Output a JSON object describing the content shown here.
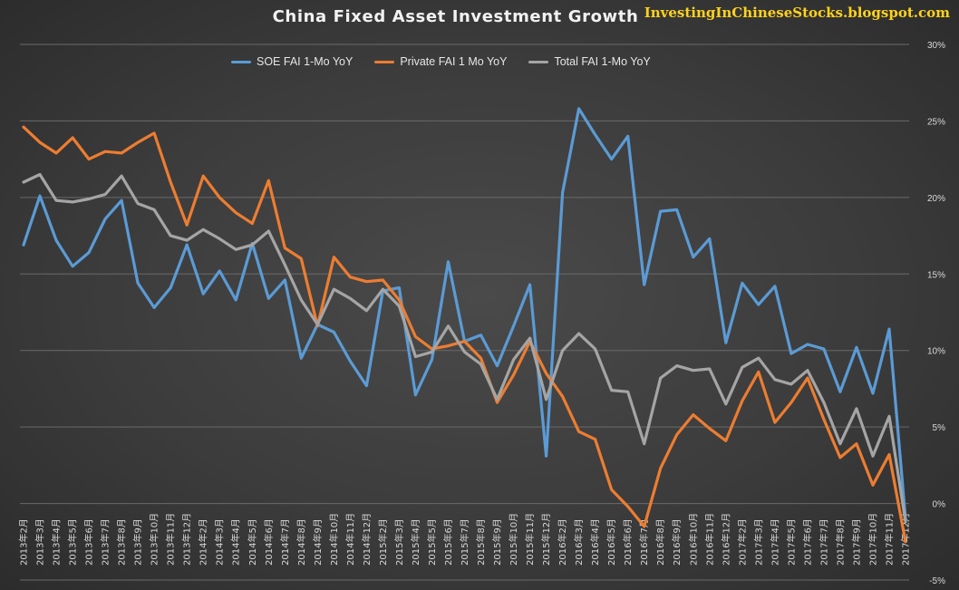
{
  "watermark": "InvestingInChineseStocks.blogspot.com",
  "chart_data": {
    "type": "line",
    "title": "China Fixed Asset Investment Growth",
    "xlabel": "",
    "ylabel": "",
    "ylim": [
      -5,
      30
    ],
    "yticks": [
      -5,
      0,
      5,
      10,
      15,
      20,
      25,
      30
    ],
    "ytick_labels": [
      "-5%",
      "0%",
      "5%",
      "10%",
      "15%",
      "20%",
      "25%",
      "30%"
    ],
    "grid": true,
    "legend_position": "top",
    "categories": [
      "2013年2月",
      "2013年3月",
      "2013年4月",
      "2013年5月",
      "2013年6月",
      "2013年7月",
      "2013年8月",
      "2013年9月",
      "2013年10月",
      "2013年11月",
      "2013年12月",
      "2014年2月",
      "2014年3月",
      "2014年4月",
      "2014年5月",
      "2014年6月",
      "2014年7月",
      "2014年8月",
      "2014年9月",
      "2014年10月",
      "2014年11月",
      "2014年12月",
      "2015年2月",
      "2015年3月",
      "2015年4月",
      "2015年5月",
      "2015年6月",
      "2015年7月",
      "2015年8月",
      "2015年9月",
      "2015年10月",
      "2015年11月",
      "2015年12月",
      "2016年2月",
      "2016年3月",
      "2016年4月",
      "2016年5月",
      "2016年6月",
      "2016年7月",
      "2016年8月",
      "2016年9月",
      "2016年10月",
      "2016年11月",
      "2016年12月",
      "2017年2月",
      "2017年3月",
      "2017年4月",
      "2017年5月",
      "2017年6月",
      "2017年7月",
      "2017年8月",
      "2017年9月",
      "2017年10月",
      "2017年11月",
      "2017年12月"
    ],
    "series": [
      {
        "name": "SOE FAI 1-Mo YoY",
        "color": "#5b9bd5",
        "values": [
          16.9,
          20.1,
          17.2,
          15.5,
          16.4,
          18.6,
          19.8,
          14.4,
          12.8,
          14.1,
          16.9,
          13.7,
          15.2,
          13.3,
          17.0,
          13.4,
          14.6,
          9.5,
          11.7,
          11.2,
          9.3,
          7.7,
          13.9,
          14.1,
          7.1,
          9.4,
          15.8,
          10.6,
          11.0,
          9.0,
          11.6,
          14.3,
          3.1,
          20.3,
          25.8,
          24.1,
          22.5,
          24.0,
          14.3,
          19.1,
          19.2,
          16.1,
          17.3,
          10.5,
          14.4,
          13.0,
          14.2,
          9.8,
          10.4,
          10.1,
          7.3,
          10.2,
          7.2,
          11.4,
          -1.0
        ]
      },
      {
        "name": "Private FAI 1 Mo YoY",
        "color": "#ed7d31",
        "values": [
          24.6,
          23.6,
          22.9,
          23.9,
          22.5,
          23.0,
          22.9,
          23.6,
          24.2,
          21.0,
          18.2,
          21.4,
          20.0,
          19.0,
          18.3,
          21.1,
          16.7,
          16.0,
          11.6,
          16.1,
          14.8,
          14.5,
          14.6,
          13.3,
          10.9,
          10.1,
          10.3,
          10.6,
          9.5,
          6.6,
          8.4,
          10.6,
          8.5,
          7.0,
          4.7,
          4.2,
          0.9,
          -0.2,
          -1.5,
          2.3,
          4.5,
          5.8,
          4.9,
          4.1,
          6.7,
          8.6,
          5.3,
          6.6,
          8.2,
          5.5,
          3.0,
          3.9,
          1.2,
          3.2,
          -2.5
        ]
      },
      {
        "name": "Total FAI 1-Mo YoY",
        "color": "#a5a5a5",
        "values": [
          21.0,
          21.5,
          19.8,
          19.7,
          19.9,
          20.2,
          21.4,
          19.6,
          19.2,
          17.5,
          17.2,
          17.9,
          17.3,
          16.6,
          16.9,
          17.8,
          15.6,
          13.3,
          11.7,
          14.0,
          13.4,
          12.6,
          14.0,
          12.9,
          9.6,
          9.9,
          11.6,
          9.9,
          9.1,
          6.8,
          9.4,
          10.8,
          6.8,
          10.0,
          11.1,
          10.1,
          7.4,
          7.3,
          3.9,
          8.2,
          9.0,
          8.7,
          8.8,
          6.5,
          8.9,
          9.5,
          8.1,
          7.8,
          8.7,
          6.6,
          3.9,
          6.2,
          3.1,
          5.7,
          -1.2
        ]
      }
    ]
  }
}
